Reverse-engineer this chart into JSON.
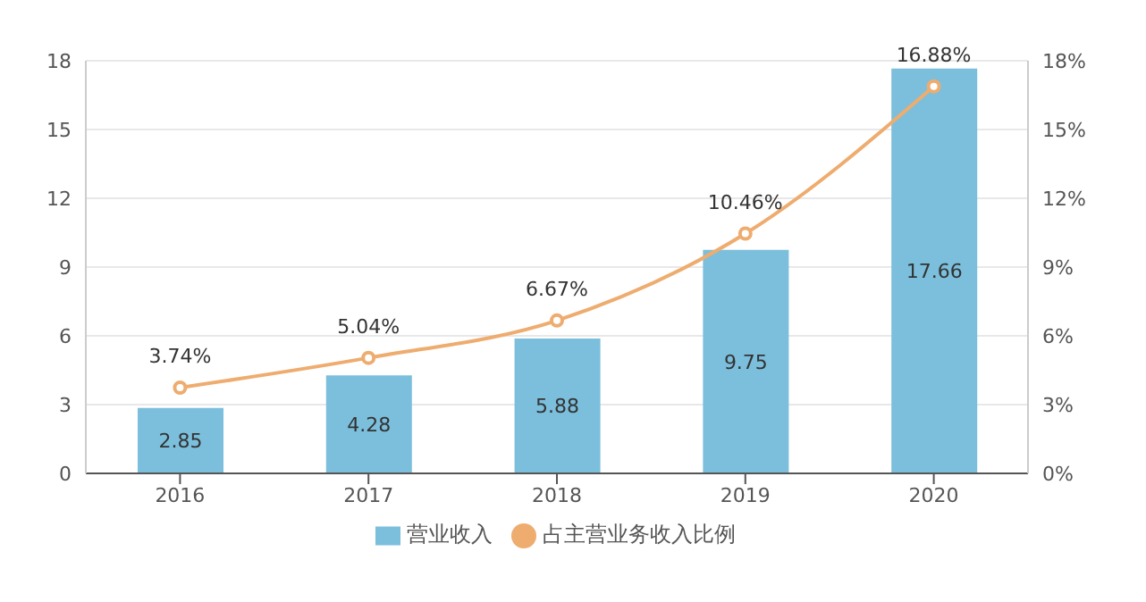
{
  "chart_data": {
    "type": "bar",
    "categories": [
      "2016",
      "2017",
      "2018",
      "2019",
      "2020"
    ],
    "series": [
      {
        "name": "营业收入",
        "color": "#7bbfdc",
        "values": [
          2.85,
          4.28,
          5.88,
          9.75,
          17.66
        ]
      },
      {
        "name": "占主营业务收入比例",
        "type": "line",
        "axis": "y2",
        "color": "#eeac6f",
        "marker": "circle",
        "values": [
          3.74,
          5.04,
          6.67,
          10.46,
          16.88
        ],
        "value_labels": [
          "3.74%",
          "5.04%",
          "6.67%",
          "10.46%",
          "16.88%"
        ]
      }
    ],
    "data_labels": true,
    "ylim": [
      0,
      18
    ],
    "yticks": [
      0,
      3,
      6,
      9,
      12,
      15,
      18
    ],
    "y2lim": [
      0,
      18
    ],
    "y2ticks": [
      {
        "value": 0,
        "label": "0%"
      },
      {
        "value": 3,
        "label": "3%"
      },
      {
        "value": 6,
        "label": "6%"
      },
      {
        "value": 9,
        "label": "9%"
      },
      {
        "value": 12,
        "label": "12%"
      },
      {
        "value": 15,
        "label": "15%"
      },
      {
        "value": 18,
        "label": "18%"
      }
    ],
    "grid": "y",
    "legend": "bottom"
  }
}
